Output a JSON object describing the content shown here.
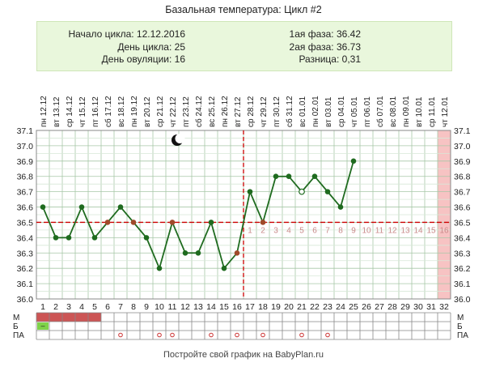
{
  "title": "Базальная температура: Цикл #2",
  "summary": {
    "cycle_start": "Начало цикла: 12.12.2016",
    "cycle_day": "День цикла: 25",
    "ovulation_day": "День овуляции: 16",
    "phase1": "1ая фаза: 36.42",
    "phase2": "2ая фаза: 36.73",
    "difference": "Разница: 0,31"
  },
  "footer": "Постройте свой график на BabyPlan.ru",
  "row_labels": [
    "М",
    "Б",
    "ПА"
  ],
  "chart_data": {
    "type": "line",
    "days": [
      1,
      2,
      3,
      4,
      5,
      6,
      7,
      8,
      9,
      10,
      11,
      12,
      13,
      14,
      15,
      16,
      17,
      18,
      19,
      20,
      21,
      22,
      23,
      24,
      25,
      26,
      27,
      28,
      29,
      30,
      31,
      32
    ],
    "weekdays": [
      "пн",
      "вт",
      "ср",
      "чт",
      "пт",
      "сб",
      "вс",
      "пн",
      "вт",
      "ср",
      "чт",
      "пт",
      "сб",
      "вс",
      "пн",
      "вт",
      "ср",
      "чт",
      "пт",
      "сб",
      "вс",
      "пн",
      "вт",
      "ср",
      "чт",
      "пт",
      "сб",
      "вс",
      "пн",
      "вт",
      "ср",
      "чт"
    ],
    "dates": [
      "12.12",
      "13.12",
      "14.12",
      "15.12",
      "16.12",
      "17.12",
      "18.12",
      "19.12",
      "20.12",
      "21.12",
      "22.12",
      "23.12",
      "24.12",
      "25.12",
      "26.12",
      "27.12",
      "28.12",
      "29.12",
      "30.12",
      "31.12",
      "01.01",
      "02.01",
      "03.01",
      "04.01",
      "05.01",
      "06.01",
      "07.01",
      "08.01",
      "09.01",
      "10.01",
      "11.01",
      "12.01"
    ],
    "temperatures": [
      36.6,
      36.4,
      36.4,
      36.6,
      36.4,
      36.5,
      36.6,
      36.5,
      36.4,
      36.2,
      36.5,
      36.3,
      36.3,
      36.5,
      36.2,
      36.3,
      36.7,
      36.5,
      36.8,
      36.8,
      36.7,
      36.8,
      36.7,
      36.6,
      36.9
    ],
    "marker_style": [
      "filled",
      "filled",
      "filled",
      "filled",
      "filled",
      "brown",
      "filled",
      "brown",
      "filled",
      "filled",
      "brown",
      "filled",
      "filled",
      "filled",
      "filled",
      "brown",
      "filled",
      "brown",
      "filled",
      "filled",
      "open",
      "filled",
      "filled",
      "filled",
      "filled"
    ],
    "y_ticks": [
      "37.1",
      "37.0",
      "36.9",
      "36.8",
      "36.7",
      "36.6",
      "36.5",
      "36.4",
      "36.3",
      "36.2",
      "36.1",
      "36.0"
    ],
    "ylim": [
      36.0,
      37.1
    ],
    "coverline": 36.5,
    "ovulation_day": 16,
    "phase2_day_labels": [
      "1",
      "2",
      "3",
      "4",
      "5",
      "6",
      "7",
      "8",
      "9",
      "10",
      "11",
      "12",
      "13",
      "14",
      "15",
      "16"
    ],
    "highlight_last_day": 32,
    "rows": {
      "menstruation_days": [
        1,
        2,
        3,
        4,
        5
      ],
      "b_marks": [
        {
          "day": 1,
          "text": "–"
        }
      ],
      "pa_days": [
        7,
        10,
        11,
        14,
        16,
        18,
        21,
        23
      ]
    },
    "colors": {
      "line": "#1f6b1f",
      "marker": "#1f6b1f",
      "marker_brown": "#a04a2a",
      "coverline": "#cc0000",
      "ovulation_line": "#cc0000",
      "phase2_labels": "#c98a8a",
      "highlight": "#f7c3c3",
      "menstruation": "#cc5555",
      "b_mark_bg": "#7fd34a",
      "pa_mark": "#cc3333",
      "grid": "#a8c8a8",
      "grid_weak": "#d8e8d8"
    }
  }
}
